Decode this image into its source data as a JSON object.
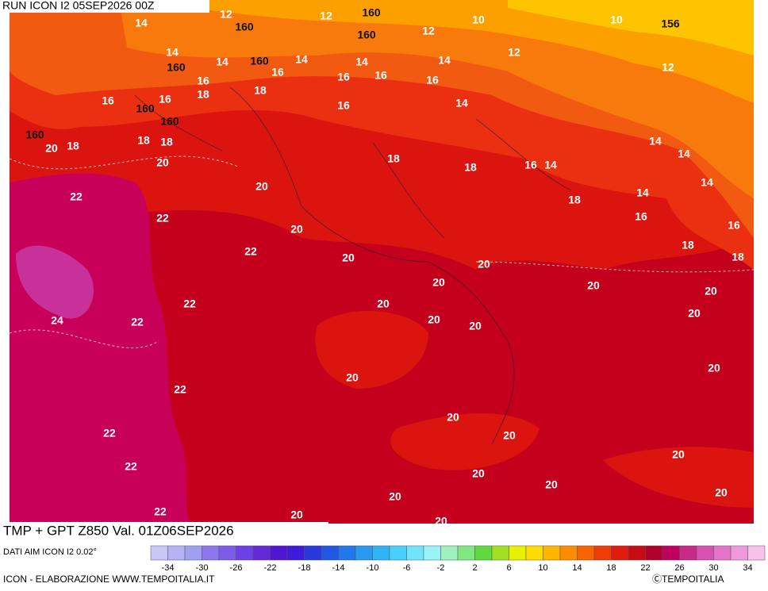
{
  "header": {
    "run": "RUN ICON I2 05SEP2026 00Z"
  },
  "map": {
    "labels": [
      "14",
      "12",
      "12",
      "160",
      "10",
      "10",
      "156",
      "160",
      "160",
      "12",
      "12",
      "12",
      "14",
      "160",
      "14",
      "160",
      "14",
      "14",
      "14",
      "16",
      "16",
      "16",
      "16",
      "16",
      "18",
      "18",
      "16",
      "160",
      "16",
      "160",
      "16",
      "14",
      "160",
      "20",
      "18",
      "18",
      "18",
      "20",
      "18",
      "18",
      "16",
      "14",
      "14",
      "14",
      "14",
      "20",
      "22",
      "22",
      "14",
      "18",
      "16",
      "16",
      "20",
      "18",
      "18",
      "22",
      "20",
      "20",
      "20",
      "20",
      "20",
      "22",
      "20",
      "20",
      "24",
      "22",
      "20",
      "20",
      "20",
      "20",
      "22",
      "20",
      "22",
      "20",
      "20",
      "22",
      "20",
      "20",
      "20",
      "20",
      "22",
      "20",
      "20"
    ]
  },
  "footer": {
    "title": "TMP + GPT Z850 Val. 01Z06SEP2026",
    "data_source": "DATI AIM ICON I2 0.02°",
    "colorbar_ticks": [
      -34,
      -30,
      -26,
      -22,
      -18,
      -14,
      -10,
      -6,
      -2,
      2,
      6,
      10,
      14,
      18,
      22,
      26,
      30,
      34
    ],
    "credit": "ICON - ELABORAZIONE WWW.TEMPOITALIA.IT",
    "copyright": "ⒸTEMPOITALIA"
  }
}
